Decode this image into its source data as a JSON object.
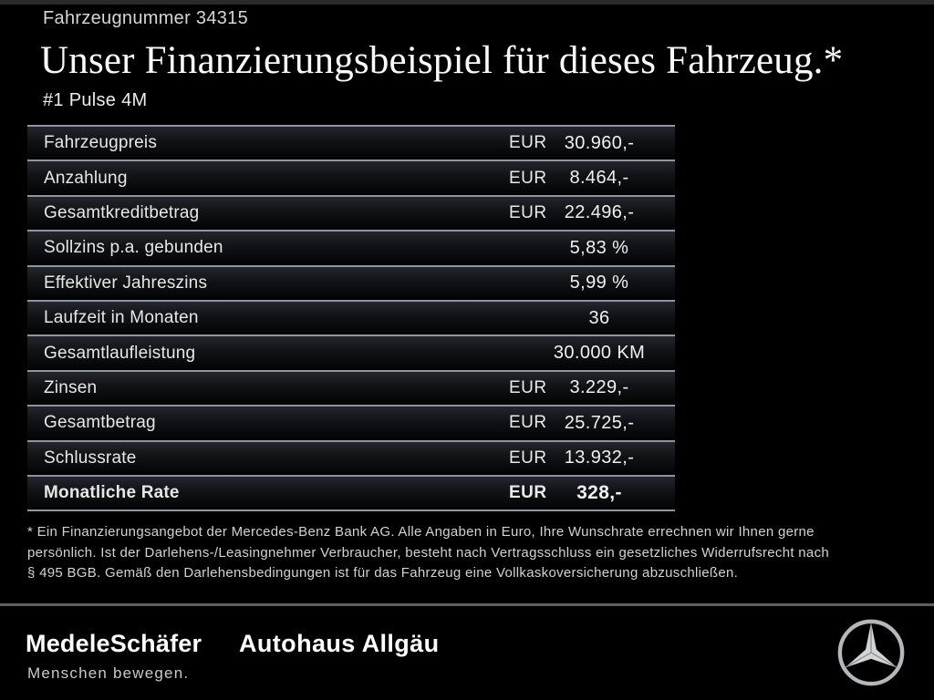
{
  "header": {
    "vehicle_number": "Fahrzeugnummer 34315",
    "title": "Unser Finanzierungsbeispiel für dieses Fahrzeug.*",
    "model": "#1 Pulse 4M"
  },
  "financing_table": {
    "rows": [
      {
        "label": "Fahrzeugpreis",
        "currency": "EUR",
        "value": "30.960,-"
      },
      {
        "label": "Anzahlung",
        "currency": "EUR",
        "value": "8.464,-"
      },
      {
        "label": "Gesamtkreditbetrag",
        "currency": "EUR",
        "value": "22.496,-"
      },
      {
        "label": "Sollzins p.a. gebunden",
        "currency": "",
        "value": "5,83 %"
      },
      {
        "label": "Effektiver Jahreszins",
        "currency": "",
        "value": "5,99 %"
      },
      {
        "label": "Laufzeit in Monaten",
        "currency": "",
        "value": "36"
      },
      {
        "label": "Gesamtlaufleistung",
        "currency": "",
        "value": "30.000 KM"
      },
      {
        "label": "Zinsen",
        "currency": "EUR",
        "value": "3.229,-"
      },
      {
        "label": "Gesamtbetrag",
        "currency": "EUR",
        "value": "25.725,-"
      },
      {
        "label": "Schlussrate",
        "currency": "EUR",
        "value": "13.932,-"
      },
      {
        "label": "Monatliche Rate",
        "currency": "EUR",
        "value": "328,-",
        "bold": true
      }
    ]
  },
  "disclaimer": {
    "lines": [
      "* Ein Finanzierungsangebot der Mercedes-Benz Bank AG. Alle Angaben in Euro, Ihre Wunschrate errechnen wir Ihnen gerne",
      "persönlich. Ist der Darlehens-/Leasingnehmer Verbraucher, besteht nach Vertragsschluss ein gesetzliches Widerrufsrecht nach",
      "§ 495 BGB. Gemäß den Darlehensbedingungen ist für das Fahrzeug eine Vollkaskoversicherung abzuschließen."
    ]
  },
  "footer": {
    "dealer_primary": "MedeleSchäfer",
    "dealer_tagline": "Menschen bewegen.",
    "dealer_secondary": "Autohaus Allgäu",
    "brand_icon": "mercedes-star"
  },
  "colors": {
    "background": "#000000",
    "separator_line": "#8f96a0",
    "row_gradient_top": "#23262c",
    "footer_divider": "#5d6063",
    "text_primary": "#fafafa",
    "text_secondary": "#d2d2d2",
    "star_silver": "#d2d4d6"
  }
}
